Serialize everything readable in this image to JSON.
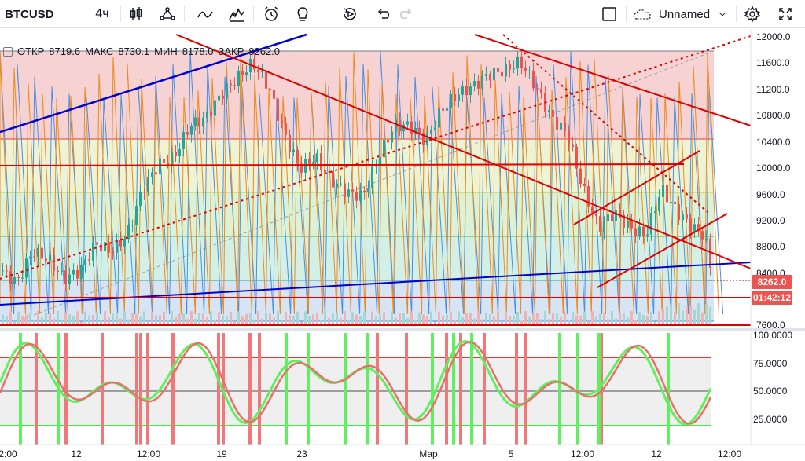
{
  "toolbar": {
    "symbol": "BTCUSD",
    "interval": "4ч",
    "layout_name": "Unnamed",
    "icons": [
      "candles-icon",
      "indicators-icon",
      "line-tool-icon",
      "patterns-icon",
      "alert-clock-icon",
      "idea-bulb-icon",
      "replay-icon",
      "undo-icon",
      "redo-icon",
      "layout-square-icon",
      "cloud-icon",
      "chevron-down-icon",
      "settings-gear-icon",
      "fullscreen-icon"
    ]
  },
  "ohlc": {
    "open_label": "ОТКР",
    "open": "8719.6",
    "high_label": "МАКС",
    "high": "8730.1",
    "low_label": "МИН",
    "low": "8178.0",
    "close_label": "ЗАКР",
    "close": "8262.0"
  },
  "price_axis": [
    "12000.0",
    "11600.0",
    "11200.0",
    "10800.0",
    "10400.0",
    "10000.0",
    "9600.0",
    "9200.0",
    "8800.0",
    "8400.0",
    "7600.0"
  ],
  "price_tags": {
    "last_price": "8262.0",
    "countdown": "01:42:12",
    "last_color": "#ef5350",
    "countdown_color": "#ef5350"
  },
  "osc_axis": [
    "100.0000",
    "75.0000",
    "50.0000",
    "25.0000"
  ],
  "time_axis": [
    "2:00",
    "12",
    "12:00",
    "19",
    "23",
    "Мар",
    "5",
    "12:00",
    "12",
    "12:00"
  ],
  "colors": {
    "up": "#26a69a",
    "down": "#ef5350",
    "trend_red": "#e00000",
    "trend_blue": "#0000cc",
    "fib_red": "#f4cfcf",
    "fib_yellow": "#eef2d2",
    "fib_green": "#d8f0d9",
    "fib_teal": "#d5eee7",
    "fib_blue": "#d6e6f2"
  },
  "chart_data": {
    "type": "candlestick",
    "symbol": "BTCUSD",
    "interval": "4h",
    "last": 8262.0,
    "ylim": [
      7600,
      12000
    ],
    "oscillator": {
      "ylim": [
        0,
        100
      ],
      "levels": [
        80,
        50,
        20
      ]
    }
  }
}
